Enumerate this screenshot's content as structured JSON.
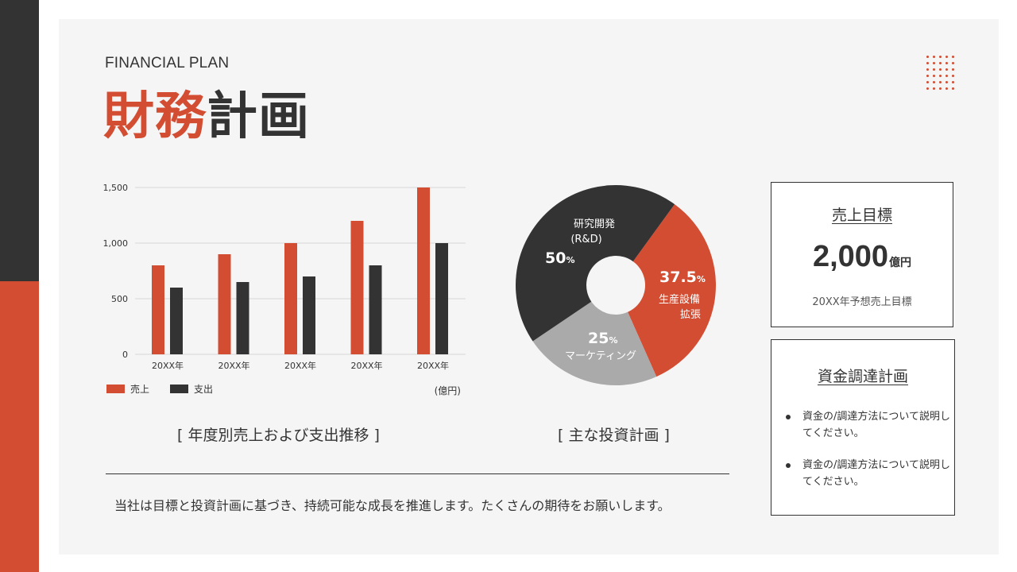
{
  "header": {
    "subtitle": "FINANCIAL PLAN",
    "title_accent": "財務",
    "title_rest": "計画"
  },
  "colors": {
    "accent": "#d24d32",
    "dark": "#333333",
    "gray": "#aaaaaa",
    "panel": "#f5f5f5"
  },
  "chart_data": [
    {
      "type": "bar",
      "categories": [
        "20XX年",
        "20XX年",
        "20XX年",
        "20XX年",
        "20XX年"
      ],
      "series": [
        {
          "name": "売上",
          "values": [
            800,
            900,
            1000,
            1200,
            1500
          ],
          "color": "#d24d32"
        },
        {
          "name": "支出",
          "values": [
            600,
            650,
            700,
            800,
            1000
          ],
          "color": "#333333"
        }
      ],
      "yticks": [
        "0",
        "500",
        "1,000",
        "1,500"
      ],
      "ylim": [
        0,
        1500
      ],
      "unit": "(億円)",
      "legend": "bottom-left",
      "grid": true
    },
    {
      "type": "pie",
      "donut": true,
      "slices": [
        {
          "label": "生産設備拡張",
          "value": 37.5,
          "color": "#d24d32"
        },
        {
          "label": "マーケティング",
          "value": 25,
          "color": "#aaaaaa"
        },
        {
          "label": "研究開発 (R&D)",
          "value": 50,
          "color": "#333333"
        }
      ]
    }
  ],
  "pie_labels": {
    "rd_line1": "研究開発",
    "rd_line2": "(R&D)",
    "rd_value": "50",
    "prod_value": "37.5",
    "prod_line1": "生産設備",
    "prod_line2": "拡張",
    "mkt_value": "25",
    "mkt_label": "マーケティング",
    "percent": "%"
  },
  "captions": {
    "bar": "[ 年度別売上および支出推移 ]",
    "pie": "[ 主な投資計画 ]"
  },
  "footer": "当社は目標と投資計画に基づき、持続可能な成長を推進します。たくさんの期待をお願いします。",
  "target_card": {
    "title": "売上目標",
    "value": "2,000",
    "unit": "億円",
    "note": "20XX年予想売上目標"
  },
  "funding_card": {
    "title": "資金調達計画",
    "bullets": [
      "資金の/調達方法について説明してください。",
      "資金の/調達方法について説明してください。"
    ]
  }
}
